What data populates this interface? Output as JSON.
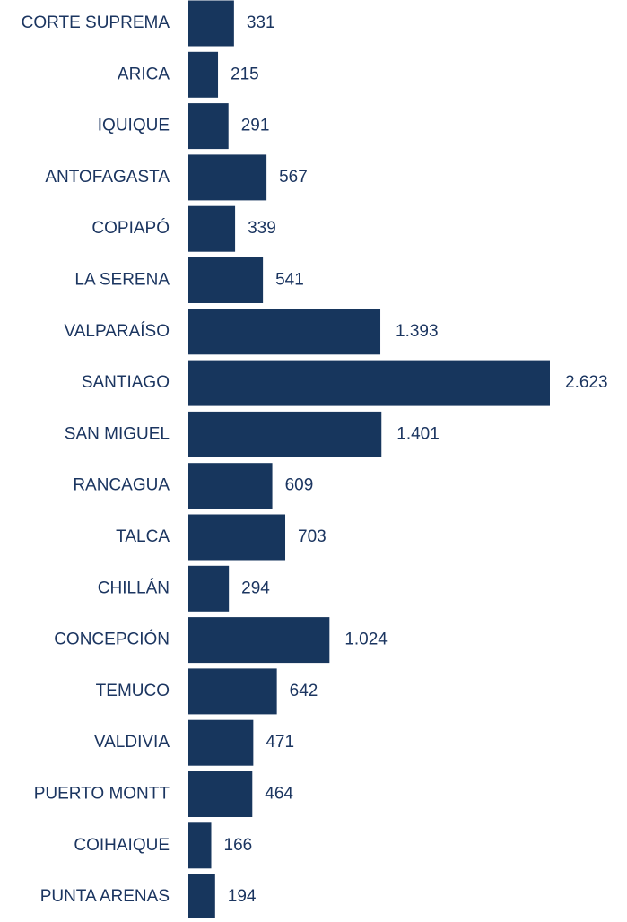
{
  "chart_data": {
    "type": "bar",
    "orientation": "horizontal",
    "color": "#17365d",
    "categories": [
      "CORTE SUPREMA",
      "ARICA",
      "IQUIQUE",
      "ANTOFAGASTA",
      "COPIAPÓ",
      "LA SERENA",
      "VALPARAÍSO",
      "SANTIAGO",
      "SAN MIGUEL",
      "RANCAGUA",
      "TALCA",
      "CHILLÁN",
      "CONCEPCIÓN",
      "TEMUCO",
      "VALDIVIA",
      "PUERTO MONTT",
      "COIHAIQUE",
      "PUNTA ARENAS"
    ],
    "values": [
      331,
      215,
      291,
      567,
      339,
      541,
      1393,
      2623,
      1401,
      609,
      703,
      294,
      1024,
      642,
      471,
      464,
      166,
      194
    ],
    "value_labels": [
      "331",
      "215",
      "291",
      "567",
      "339",
      "541",
      "1.393",
      "2.623",
      "1.401",
      "609",
      "703",
      "294",
      "1.024",
      "642",
      "471",
      "464",
      "166",
      "194"
    ]
  }
}
